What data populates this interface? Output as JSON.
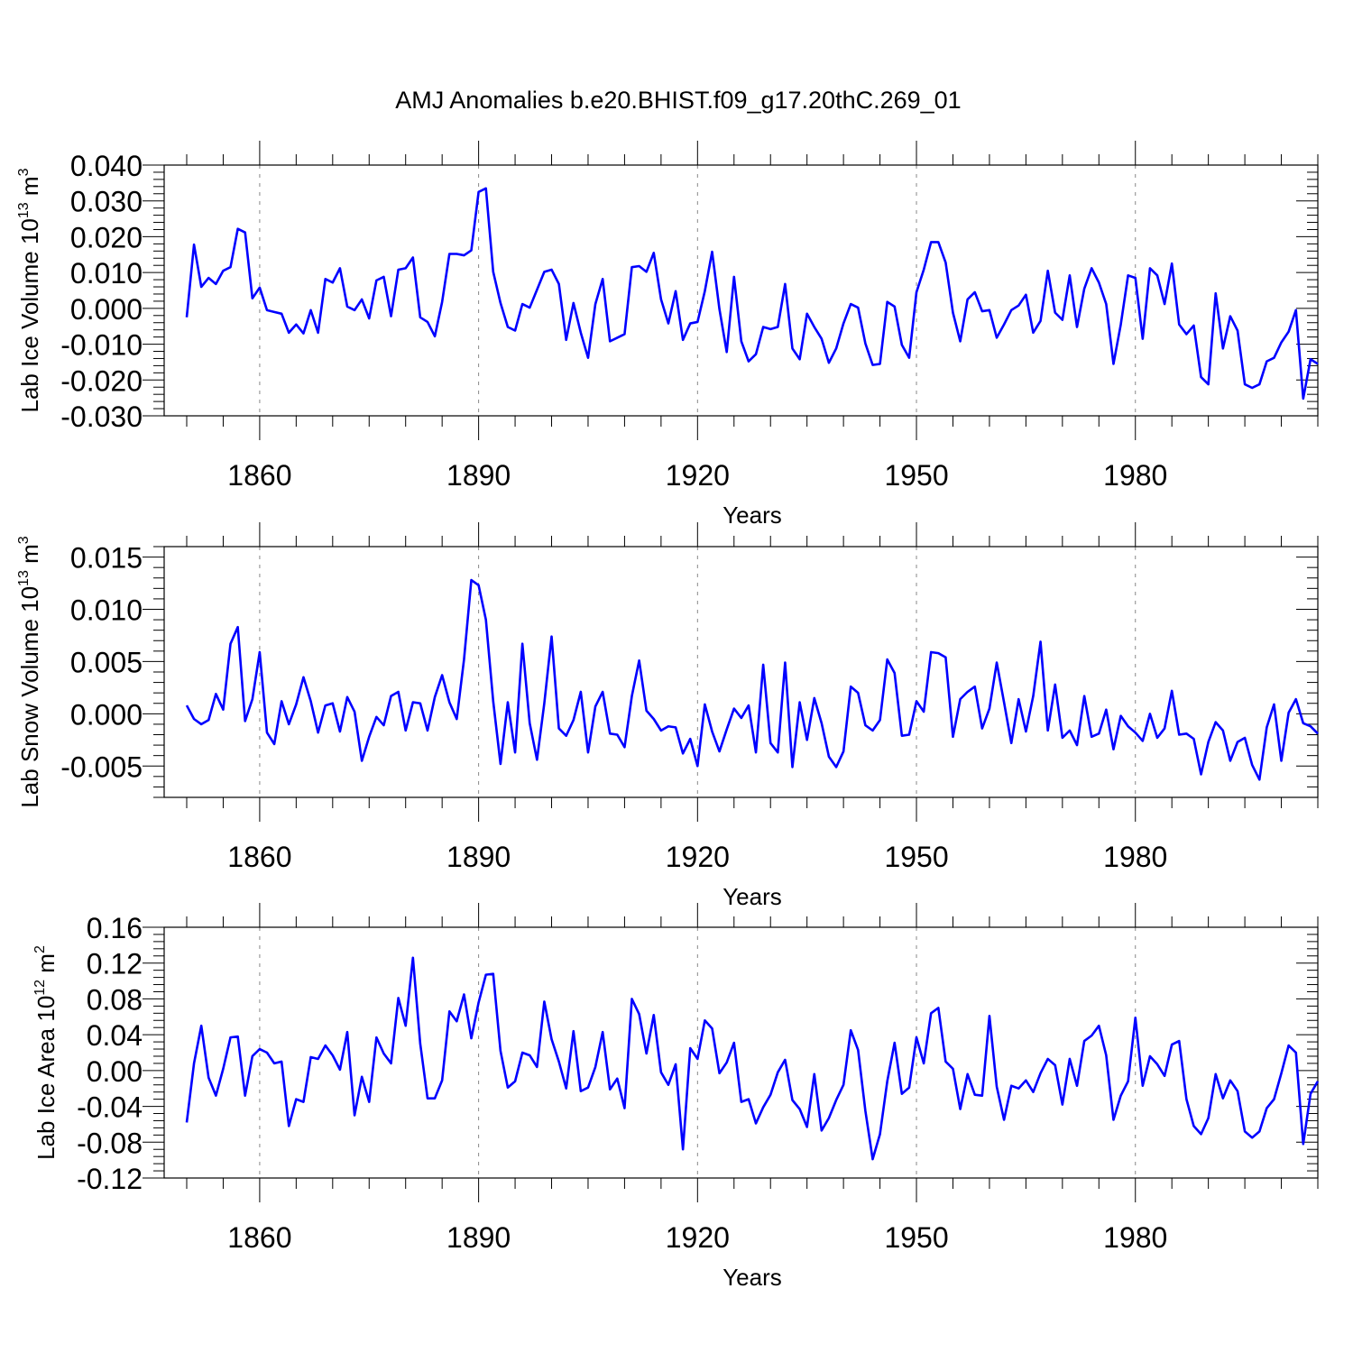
{
  "title": "AMJ Anomalies b.e20.BHIST.f09_g17.20thC.269_01",
  "colors": {
    "series": "#0000ff",
    "axis": "#000000",
    "grid": "#888888"
  },
  "chart_data": [
    {
      "type": "line",
      "name": "ice-volume",
      "xlabel": "Years",
      "ylabel": {
        "text": "Lab Ice Volume 10",
        "sup": "13",
        "unit": " m",
        "unit_sup": "3"
      },
      "xlim": [
        1850,
        2005
      ],
      "ylim": [
        -0.03,
        0.04
      ],
      "xticks": [
        1860,
        1890,
        1920,
        1950,
        1980
      ],
      "xtick_labels": [
        "1860",
        "1890",
        "1920",
        "1950",
        "1980"
      ],
      "yticks": [
        -0.03,
        -0.02,
        -0.01,
        0.0,
        0.01,
        0.02,
        0.03,
        0.04
      ],
      "ytick_labels": [
        "-0.030",
        "-0.020",
        "-0.010",
        "0.000",
        "0.010",
        "0.020",
        "0.030",
        "0.040"
      ],
      "x_start": 1850,
      "values": [
        -0.0025,
        0.0178,
        0.006,
        0.0085,
        0.0068,
        0.0105,
        0.0115,
        0.0222,
        0.0212,
        0.0028,
        0.0058,
        -0.0005,
        -0.001,
        -0.0015,
        -0.0068,
        -0.0045,
        -0.007,
        -0.0005,
        -0.0068,
        0.0082,
        0.0072,
        0.0112,
        0.0005,
        -0.0005,
        0.0025,
        -0.0028,
        0.0078,
        0.0088,
        -0.0022,
        0.0108,
        0.0112,
        0.0142,
        -0.0025,
        -0.0038,
        -0.0078,
        0.0018,
        0.0152,
        0.0152,
        0.0148,
        0.0162,
        0.0325,
        0.0335,
        0.0102,
        0.0015,
        -0.0052,
        -0.0062,
        0.0012,
        0.0002,
        0.0052,
        0.0102,
        0.0108,
        0.0068,
        -0.0088,
        0.0015,
        -0.0068,
        -0.0138,
        0.0012,
        0.0082,
        -0.0092,
        -0.0082,
        -0.0072,
        0.0115,
        0.0118,
        0.0102,
        0.0155,
        0.0025,
        -0.0042,
        0.0048,
        -0.0088,
        -0.0042,
        -0.0038,
        0.0048,
        0.0158,
        -0.0002,
        -0.0122,
        0.0088,
        -0.0092,
        -0.0148,
        -0.0128,
        -0.0052,
        -0.0058,
        -0.0052,
        0.0068,
        -0.0112,
        -0.0142,
        -0.0015,
        -0.0052,
        -0.0085,
        -0.0152,
        -0.0112,
        -0.0042,
        0.0012,
        0.0002,
        -0.0098,
        -0.0158,
        -0.0155,
        0.0018,
        0.0005,
        -0.0102,
        -0.0138,
        0.0045,
        0.0108,
        0.0185,
        0.0185,
        0.0128,
        -0.0012,
        -0.0092,
        0.0025,
        0.0045,
        -0.0008,
        -0.0005,
        -0.0082,
        -0.0045,
        -0.0005,
        0.0008,
        0.0038,
        -0.0068,
        -0.0035,
        0.0105,
        -0.0012,
        -0.0032,
        0.0092,
        -0.0052,
        0.0055,
        0.0112,
        0.0072,
        0.0012,
        -0.0155,
        -0.0045,
        0.0092,
        0.0085,
        -0.0085,
        0.0112,
        0.0092,
        0.0012,
        0.0125,
        -0.0045,
        -0.0072,
        -0.0048,
        -0.0192,
        -0.0212,
        0.0042,
        -0.0112,
        -0.0022,
        -0.0062,
        -0.0212,
        -0.0222,
        -0.0212,
        -0.0148,
        -0.0138,
        -0.0095,
        -0.0065,
        -0.0005,
        -0.0252,
        -0.0142,
        -0.0155
      ]
    },
    {
      "type": "line",
      "name": "snow-volume",
      "xlabel": "Years",
      "ylabel": {
        "text": "Lab Snow Volume 10",
        "sup": "13",
        "unit": " m",
        "unit_sup": "3"
      },
      "xlim": [
        1850,
        2005
      ],
      "ylim": [
        -0.008,
        0.016
      ],
      "xticks": [
        1860,
        1890,
        1920,
        1950,
        1980
      ],
      "xtick_labels": [
        "1860",
        "1890",
        "1920",
        "1950",
        "1980"
      ],
      "yticks": [
        -0.005,
        0.0,
        0.005,
        0.01,
        0.015
      ],
      "ytick_labels": [
        "-0.005",
        "0.000",
        "0.005",
        "0.010",
        "0.015"
      ],
      "x_start": 1850,
      "values": [
        0.0008,
        -0.0005,
        -0.001,
        -0.0006,
        0.0019,
        0.0004,
        0.0067,
        0.0083,
        -0.0007,
        0.0014,
        0.0059,
        -0.0018,
        -0.0029,
        0.0012,
        -0.001,
        0.0009,
        0.0035,
        0.0012,
        -0.0018,
        0.0008,
        0.001,
        -0.0017,
        0.0016,
        0.0002,
        -0.0045,
        -0.0022,
        -0.0003,
        -0.0011,
        0.0017,
        0.0021,
        -0.0016,
        0.0011,
        0.001,
        -0.0016,
        0.0016,
        0.0037,
        0.0011,
        -0.0005,
        0.0052,
        0.0128,
        0.0123,
        0.009,
        0.0012,
        -0.0048,
        0.0011,
        -0.0037,
        0.0067,
        -0.0009,
        -0.0044,
        0.001,
        0.0074,
        -0.0014,
        -0.0021,
        -0.0006,
        0.0021,
        -0.0037,
        0.0007,
        0.0021,
        -0.0019,
        -0.002,
        -0.0032,
        0.0017,
        0.0051,
        0.0003,
        -0.0005,
        -0.0016,
        -0.0012,
        -0.0013,
        -0.0038,
        -0.0024,
        -0.005,
        0.0009,
        -0.0017,
        -0.0036,
        -0.0015,
        0.0005,
        -0.0004,
        0.0008,
        -0.0037,
        0.0047,
        -0.0028,
        -0.0037,
        0.0049,
        -0.0051,
        0.0011,
        -0.0025,
        0.0015,
        -0.0009,
        -0.0041,
        -0.0051,
        -0.0036,
        0.0026,
        0.002,
        -0.0011,
        -0.0016,
        -0.0006,
        0.0052,
        0.0039,
        -0.0021,
        -0.002,
        0.0012,
        0.0002,
        0.0059,
        0.0058,
        0.0054,
        -0.0022,
        0.0014,
        0.0021,
        0.0026,
        -0.0014,
        0.0005,
        0.0049,
        0.0011,
        -0.0028,
        0.0014,
        -0.0017,
        0.0017,
        0.0069,
        -0.0016,
        0.0028,
        -0.0023,
        -0.0016,
        -0.003,
        0.0017,
        -0.0022,
        -0.0019,
        0.0004,
        -0.0034,
        -0.0002,
        -0.0012,
        -0.0018,
        -0.0026,
        0.0,
        -0.0023,
        -0.0014,
        0.0022,
        -0.002,
        -0.0019,
        -0.0024,
        -0.0058,
        -0.0027,
        -0.0008,
        -0.0016,
        -0.0045,
        -0.0027,
        -0.0023,
        -0.0049,
        -0.0063,
        -0.0013,
        0.0009,
        -0.0045,
        0.0001,
        0.0014,
        -0.0009,
        -0.0012,
        -0.0019
      ]
    },
    {
      "type": "line",
      "name": "ice-area",
      "xlabel": "Years",
      "ylabel": {
        "text": "Lab Ice Area 10",
        "sup": "12",
        "unit": " m",
        "unit_sup": "2"
      },
      "xlim": [
        1850,
        2005
      ],
      "ylim": [
        -0.12,
        0.16
      ],
      "xticks": [
        1860,
        1890,
        1920,
        1950,
        1980
      ],
      "xtick_labels": [
        "1860",
        "1890",
        "1920",
        "1950",
        "1980"
      ],
      "yticks": [
        -0.12,
        -0.08,
        -0.04,
        0.0,
        0.04,
        0.08,
        0.12,
        0.16
      ],
      "ytick_labels": [
        "-0.12",
        "-0.08",
        "-0.04",
        "0.00",
        "0.04",
        "0.08",
        "0.12",
        "0.16"
      ],
      "x_start": 1850,
      "values": [
        -0.058,
        0.008,
        0.05,
        -0.008,
        -0.028,
        0.002,
        0.037,
        0.038,
        -0.028,
        0.016,
        0.024,
        0.02,
        0.008,
        0.01,
        -0.062,
        -0.032,
        -0.035,
        0.015,
        0.013,
        0.028,
        0.017,
        0.001,
        0.043,
        -0.05,
        -0.007,
        -0.035,
        0.037,
        0.019,
        0.008,
        0.081,
        0.05,
        0.126,
        0.03,
        -0.031,
        -0.031,
        -0.011,
        0.066,
        0.055,
        0.085,
        0.036,
        0.076,
        0.107,
        0.108,
        0.022,
        -0.019,
        -0.012,
        0.02,
        0.017,
        0.004,
        0.077,
        0.035,
        0.01,
        -0.02,
        0.044,
        -0.023,
        -0.019,
        0.004,
        0.043,
        -0.021,
        -0.009,
        -0.042,
        0.08,
        0.063,
        0.019,
        0.062,
        -0.002,
        -0.016,
        0.007,
        -0.088,
        0.025,
        0.013,
        0.056,
        0.047,
        -0.003,
        0.009,
        0.031,
        -0.035,
        -0.032,
        -0.059,
        -0.041,
        -0.027,
        -0.002,
        0.012,
        -0.033,
        -0.043,
        -0.063,
        -0.004,
        -0.067,
        -0.053,
        -0.033,
        -0.016,
        0.045,
        0.023,
        -0.045,
        -0.099,
        -0.071,
        -0.012,
        0.031,
        -0.026,
        -0.019,
        0.037,
        0.008,
        0.064,
        0.07,
        0.01,
        0.002,
        -0.043,
        -0.004,
        -0.027,
        -0.028,
        0.061,
        -0.018,
        -0.055,
        -0.017,
        -0.02,
        -0.011,
        -0.024,
        -0.003,
        0.013,
        0.006,
        -0.038,
        0.013,
        -0.017,
        0.033,
        0.039,
        0.05,
        0.017,
        -0.055,
        -0.028,
        -0.012,
        0.059,
        -0.017,
        0.016,
        0.007,
        -0.006,
        0.029,
        0.033,
        -0.032,
        -0.062,
        -0.071,
        -0.053,
        -0.004,
        -0.031,
        -0.011,
        -0.023,
        -0.068,
        -0.075,
        -0.068,
        -0.042,
        -0.032,
        -0.003,
        0.028,
        0.02,
        -0.082,
        -0.026,
        -0.012
      ]
    }
  ]
}
